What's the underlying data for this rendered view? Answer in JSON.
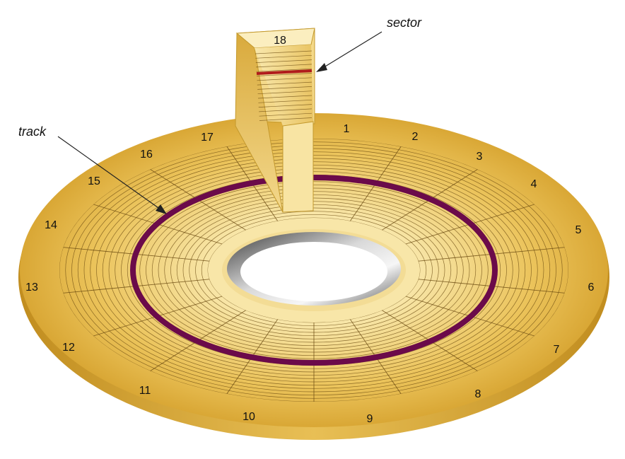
{
  "callouts": {
    "sector": "sector",
    "track": "track"
  },
  "slice_label": "18",
  "sector_labels": [
    "1",
    "2",
    "3",
    "4",
    "5",
    "6",
    "7",
    "8",
    "9",
    "10",
    "11",
    "12",
    "13",
    "14",
    "15",
    "16",
    "17"
  ],
  "colors": {
    "platter": "#e4b645",
    "platter_light": "#f6dc94",
    "platter_dark": "#c99423",
    "track_highlight": "#6b0a4a",
    "sector_highlight": "#b01c1c",
    "hub": "#8c8c8c",
    "grid": "#6a4a10"
  },
  "disk": {
    "sectors": 18,
    "tracks": 24,
    "highlighted_track": 13
  }
}
